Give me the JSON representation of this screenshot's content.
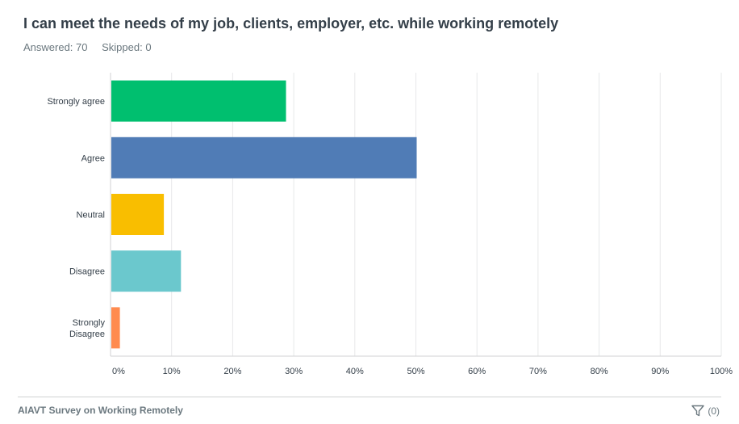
{
  "question": {
    "title": "I can meet the needs of my job, clients, employer, etc. while working remotely",
    "answered": "Answered: 70",
    "skipped": "Skipped: 0"
  },
  "footer": {
    "survey_name": "AIAVT Survey on Working Remotely",
    "filter_count": "(0)"
  },
  "chart_data": {
    "type": "bar",
    "orientation": "horizontal",
    "categories": [
      [
        "Strongly agree"
      ],
      [
        "Agree"
      ],
      [
        "Neutral"
      ],
      [
        "Disagree"
      ],
      [
        "Strongly",
        "Disagree"
      ]
    ],
    "values": [
      28.6,
      50.0,
      8.6,
      11.4,
      1.4
    ],
    "colors": [
      "#00bf6f",
      "#507cb6",
      "#f9be00",
      "#6bc8cd",
      "#ff8b4f"
    ],
    "xlim": [
      0,
      100
    ],
    "ticks": [
      0,
      10,
      20,
      30,
      40,
      50,
      60,
      70,
      80,
      90,
      100
    ],
    "tick_labels": [
      "0%",
      "10%",
      "20%",
      "30%",
      "40%",
      "50%",
      "60%",
      "70%",
      "80%",
      "90%",
      "100%"
    ],
    "grid": true
  }
}
